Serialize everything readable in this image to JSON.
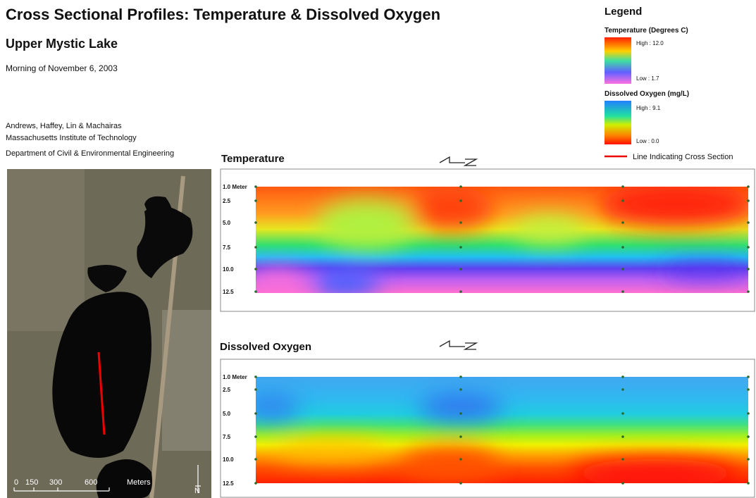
{
  "header": {
    "title": "Cross Sectional Profiles: Temperature & Dissolved Oxygen",
    "subtitle": "Upper Mystic Lake",
    "date": "Morning of November 6, 2003"
  },
  "credits": [
    "Andrews, Haffey, Lin & Machairas",
    "Massachusetts Institute of Technology",
    "Department of Civil & Environmental Engineering"
  ],
  "legend": {
    "title": "Legend",
    "temperature": {
      "label": "Temperature (Degrees C)",
      "high": "High : 12.0",
      "low": "Low : 1.7"
    },
    "oxygen": {
      "label": "Dissolved Oxygen (mg/L)",
      "high": "High : 9.1",
      "low": "Low : 0.0"
    },
    "cross_section": "Line Indicating Cross Section"
  },
  "panels": [
    {
      "title": "Temperature",
      "depths": [
        "1.0 Meter",
        "2.5",
        "5.0",
        "7.5",
        "10.0",
        "12.5"
      ]
    },
    {
      "title": "Dissolved Oxygen",
      "depths": [
        "1.0 Meter",
        "2.5",
        "5.0",
        "7.5",
        "10.0",
        "12.5"
      ]
    }
  ],
  "map": {
    "scale_labels": [
      "0",
      "150",
      "300",
      "600",
      "Meters"
    ],
    "north": "N"
  }
}
